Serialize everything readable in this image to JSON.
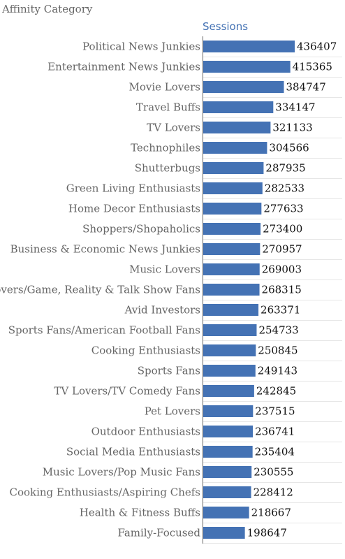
{
  "chart_data": {
    "type": "bar",
    "orientation": "horizontal",
    "dimension_label": "Affinity Category",
    "metric_label": "Sessions",
    "bar_color": "#4472b4",
    "categories": [
      "Political News Junkies",
      "Entertainment News Junkies",
      "Movie Lovers",
      "Travel Buffs",
      "TV Lovers",
      "Technophiles",
      "Shutterbugs",
      "Green Living Enthusiasts",
      "Home Decor Enthusiasts",
      "Shoppers/Shopaholics",
      "Business & Economic News Junkies",
      "Music Lovers",
      "TV Lovers/Game, Reality & Talk Show Fans",
      "Avid Investors",
      "Sports Fans/American Football Fans",
      "Cooking Enthusiasts",
      "Sports Fans",
      "TV Lovers/TV Comedy Fans",
      "Pet Lovers",
      "Outdoor Enthusiasts",
      "Social Media Enthusiasts",
      "Music Lovers/Pop Music Fans",
      "Cooking Enthusiasts/Aspiring Chefs",
      "Health & Fitness Buffs",
      "Family-Focused"
    ],
    "values": [
      436407,
      415365,
      384747,
      334147,
      321133,
      304566,
      287935,
      282533,
      277633,
      273400,
      270957,
      269003,
      268315,
      263371,
      254733,
      250845,
      249143,
      242845,
      237515,
      236741,
      235404,
      230555,
      228412,
      218667,
      198647
    ],
    "xlim": [
      0,
      436407
    ],
    "grid": "horizontal row separators"
  }
}
